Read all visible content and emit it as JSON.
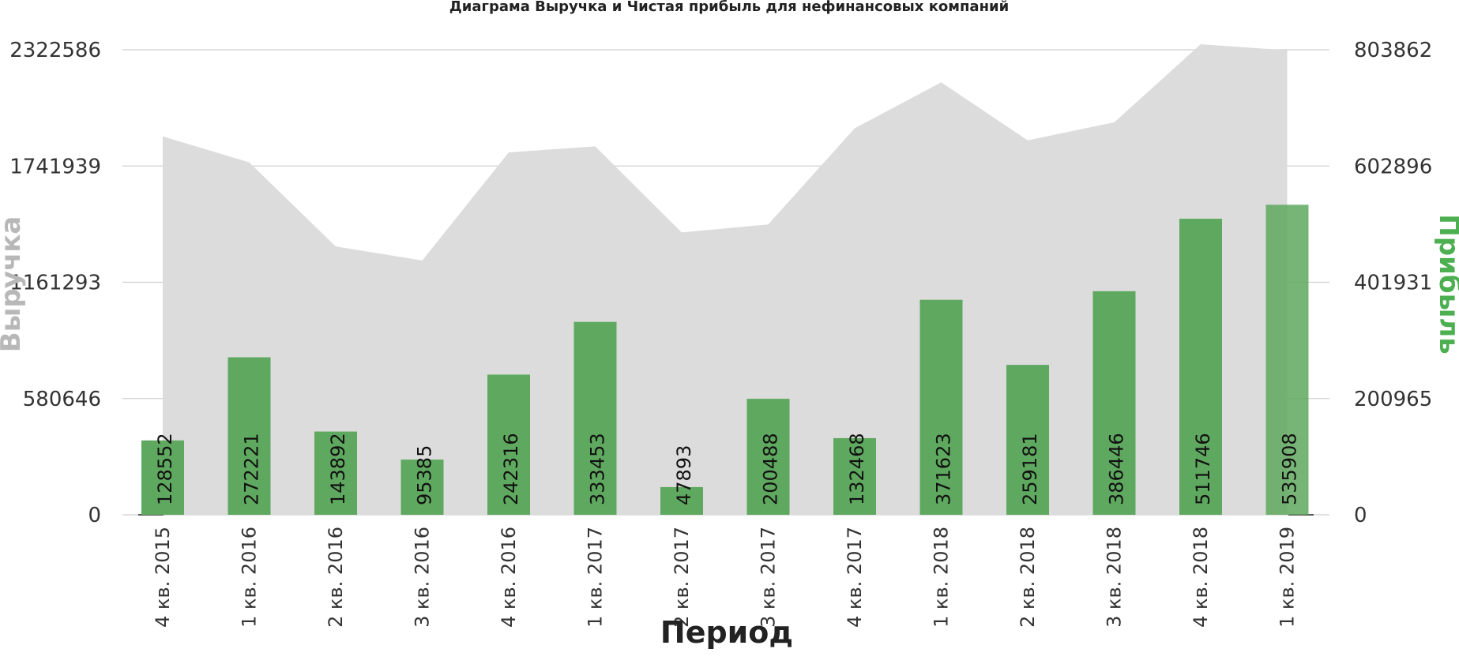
{
  "chart_data": {
    "type": "bar",
    "title": "Диаграма Выручка и Чистая прибыль для нефинансовых компаний",
    "xlabel": "Период",
    "ylabel_left": "Выручка",
    "ylabel_right": "Прибыль",
    "categories": [
      "4 кв. 2015",
      "1 кв. 2016",
      "2 кв. 2016",
      "3 кв. 2016",
      "4 кв. 2016",
      "1 кв. 2017",
      "2 кв. 2017",
      "3 кв. 2017",
      "4 кв. 2017",
      "1 кв. 2018",
      "2 кв. 2018",
      "3 кв. 2018",
      "4 кв. 2018",
      "1 кв. 2019"
    ],
    "y_left": {
      "ylim": [
        0,
        2322586
      ],
      "ticks": [
        "0",
        "580646",
        "1161293",
        "1741939",
        "2322586"
      ]
    },
    "y_right": {
      "ylim": [
        0,
        803862
      ],
      "ticks": [
        "0",
        "200965",
        "401931",
        "602896",
        "803862"
      ]
    },
    "grid": true,
    "series": [
      {
        "name": "Выручка",
        "kind": "area",
        "axis": "left",
        "color": "#dcdcdc",
        "values": [
          1890000,
          1760000,
          1340000,
          1270000,
          1810000,
          1840000,
          1410000,
          1450000,
          1930000,
          2160000,
          1870000,
          1960000,
          2350000,
          2320000
        ]
      },
      {
        "name": "Прибыль",
        "kind": "bar",
        "axis": "right",
        "color": "#5fa85f",
        "values": [
          128552,
          272221,
          143892,
          95385,
          242316,
          333453,
          47893,
          200488,
          132468,
          371623,
          259181,
          386446,
          511746,
          535908
        ],
        "labels": [
          "128552",
          "272221",
          "143892",
          "95385",
          "242316",
          "333453",
          "47893",
          "200488",
          "132468",
          "371623",
          "259181",
          "386446",
          "511746",
          "535908"
        ]
      }
    ]
  },
  "colors": {
    "area": "#dcdcdc",
    "bar": "#5fa85f",
    "grid": "#cfcfcf",
    "left_title": "#b8b8b8",
    "right_title": "#4caf50"
  }
}
